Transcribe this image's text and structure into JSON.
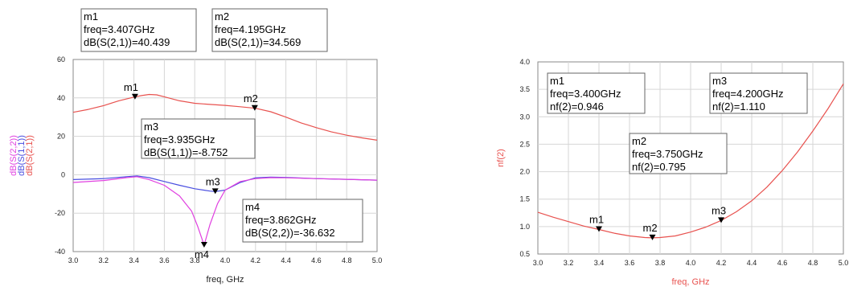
{
  "chart_data": [
    {
      "type": "line",
      "xlabel": "freq, GHz",
      "ylabels": [
        "dB(S(2,2))",
        "dB(S(1,1))",
        "dB(S(2,1))"
      ],
      "xlim": [
        3.0,
        5.0
      ],
      "ylim": [
        -40,
        60
      ],
      "xticks": [
        "3.0",
        "3.2",
        "3.4",
        "3.6",
        "3.8",
        "4.0",
        "4.2",
        "4.4",
        "4.6",
        "4.8",
        "5.0"
      ],
      "yticks": [
        "60",
        "40",
        "20",
        "0",
        "-20",
        "-40"
      ],
      "grid": true,
      "series": [
        {
          "name": "dB(S(2,1))",
          "color": "#e8524f",
          "x": [
            3.0,
            3.1,
            3.2,
            3.3,
            3.4,
            3.45,
            3.5,
            3.55,
            3.6,
            3.7,
            3.8,
            3.9,
            4.0,
            4.1,
            4.2,
            4.3,
            4.4,
            4.5,
            4.6,
            4.7,
            4.8,
            4.9,
            5.0
          ],
          "y": [
            32.5,
            34.0,
            36.0,
            38.5,
            40.4,
            41.2,
            41.8,
            41.6,
            40.6,
            38.5,
            37.2,
            36.6,
            36.1,
            35.4,
            34.6,
            32.8,
            30.0,
            27.0,
            24.5,
            22.3,
            20.6,
            19.2,
            18.0
          ]
        },
        {
          "name": "dB(S(1,1))",
          "color": "#4a4fe0",
          "x": [
            3.0,
            3.2,
            3.35,
            3.42,
            3.5,
            3.6,
            3.7,
            3.8,
            3.9,
            3.935,
            4.0,
            4.1,
            4.2,
            4.3,
            4.4,
            4.6,
            4.8,
            5.0
          ],
          "y": [
            -2.5,
            -2.0,
            -1.0,
            -0.6,
            -1.5,
            -3.5,
            -5.5,
            -7.3,
            -8.5,
            -8.752,
            -8.0,
            -4.0,
            -1.6,
            -1.2,
            -1.4,
            -2.0,
            -2.4,
            -2.8
          ]
        },
        {
          "name": "dB(S(2,2))",
          "color": "#e040e0",
          "x": [
            3.0,
            3.2,
            3.35,
            3.42,
            3.5,
            3.6,
            3.7,
            3.78,
            3.82,
            3.862,
            3.9,
            3.95,
            4.0,
            4.1,
            4.2,
            4.3,
            4.4,
            4.6,
            4.8,
            5.0
          ],
          "y": [
            -4.0,
            -3.0,
            -1.5,
            -1.0,
            -2.5,
            -5.5,
            -11.0,
            -19.0,
            -27.0,
            -36.632,
            -26.0,
            -15.0,
            -8.0,
            -3.5,
            -2.0,
            -1.5,
            -1.6,
            -2.0,
            -2.4,
            -2.8
          ]
        }
      ],
      "markers": [
        {
          "name": "m1",
          "x": 3.407,
          "y": 40.439,
          "lines": [
            "m1",
            "freq=3.407GHz",
            "dB(S(2,1))=40.439"
          ]
        },
        {
          "name": "m2",
          "x": 4.195,
          "y": 34.569,
          "lines": [
            "m2",
            "freq=4.195GHz",
            "dB(S(2,1))=34.569"
          ]
        },
        {
          "name": "m3",
          "x": 3.935,
          "y": -8.752,
          "lines": [
            "m3",
            "freq=3.935GHz",
            "dB(S(1,1))=-8.752"
          ]
        },
        {
          "name": "m4",
          "x": 3.862,
          "y": -36.632,
          "lines": [
            "m4",
            "freq=3.862GHz",
            "dB(S(2,2))=-36.632"
          ]
        }
      ]
    },
    {
      "type": "line",
      "xlabel": "freq, GHz",
      "ylabel": "nf(2)",
      "xlim": [
        3.0,
        5.0
      ],
      "ylim": [
        0.5,
        4.0
      ],
      "xticks": [
        "3.0",
        "3.2",
        "3.4",
        "3.6",
        "3.8",
        "4.0",
        "4.2",
        "4.4",
        "4.6",
        "4.8",
        "5.0"
      ],
      "yticks": [
        "4.0",
        "3.5",
        "3.0",
        "2.5",
        "2.0",
        "1.5",
        "1.0",
        "0.5"
      ],
      "grid": true,
      "series": [
        {
          "name": "nf(2)",
          "color": "#e8524f",
          "x": [
            3.0,
            3.1,
            3.2,
            3.3,
            3.4,
            3.5,
            3.6,
            3.7,
            3.75,
            3.8,
            3.9,
            4.0,
            4.1,
            4.2,
            4.3,
            4.4,
            4.5,
            4.6,
            4.7,
            4.8,
            4.9,
            5.0
          ],
          "y": [
            1.26,
            1.17,
            1.09,
            1.01,
            0.946,
            0.88,
            0.83,
            0.8,
            0.795,
            0.8,
            0.83,
            0.9,
            0.99,
            1.11,
            1.27,
            1.47,
            1.72,
            2.02,
            2.36,
            2.74,
            3.15,
            3.6
          ]
        }
      ],
      "markers": [
        {
          "name": "m1",
          "x": 3.4,
          "y": 0.946,
          "lines": [
            "m1",
            "freq=3.400GHz",
            "nf(2)=0.946"
          ]
        },
        {
          "name": "m2",
          "x": 3.75,
          "y": 0.795,
          "lines": [
            "m2",
            "freq=3.750GHz",
            "nf(2)=0.795"
          ]
        },
        {
          "name": "m3",
          "x": 4.2,
          "y": 1.11,
          "lines": [
            "m3",
            "freq=4.200GHz",
            "nf(2)=1.110"
          ]
        }
      ]
    }
  ]
}
